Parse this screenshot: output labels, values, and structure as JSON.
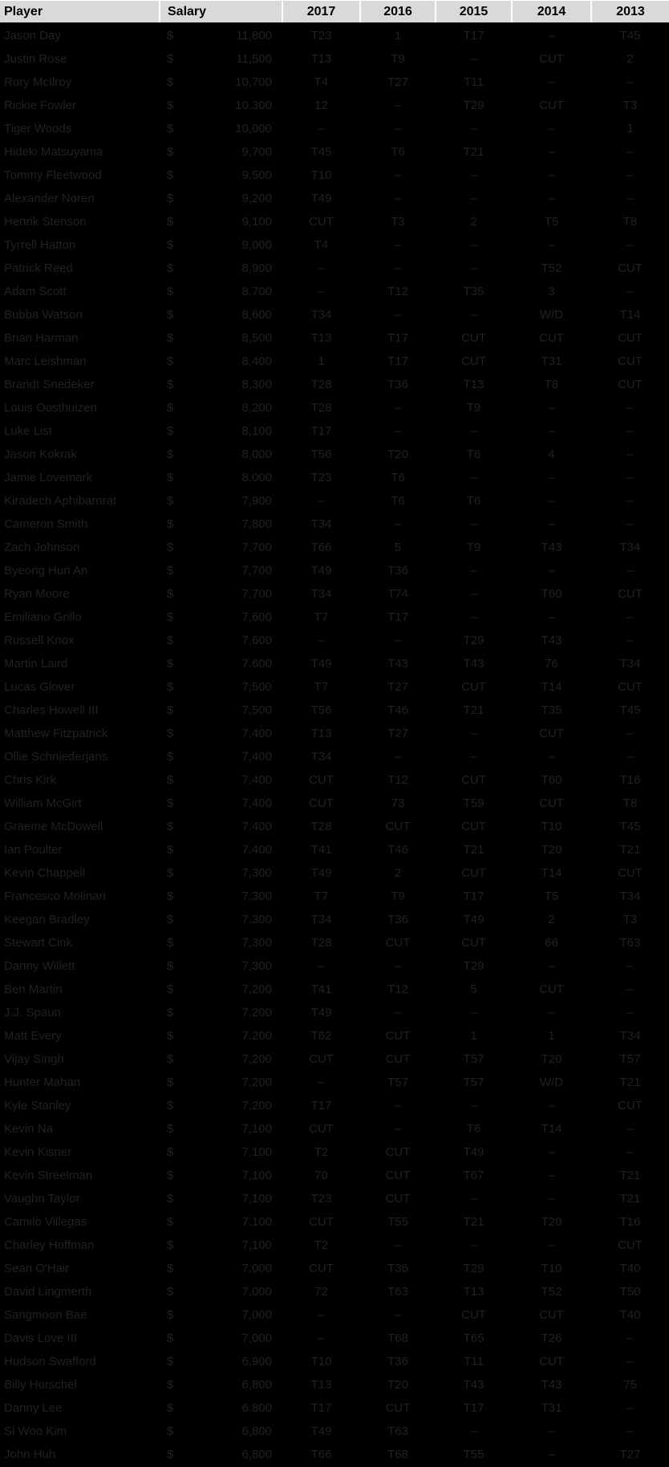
{
  "table": {
    "columns": [
      "Player",
      "Salary",
      "2017",
      "2016",
      "2015",
      "2014",
      "2013"
    ],
    "currency_symbol": "$",
    "rows": [
      {
        "player": "Jason Day",
        "salary": "11,800",
        "results": [
          "T23",
          "1",
          "T17",
          "–",
          "T45"
        ]
      },
      {
        "player": "Justin Rose",
        "salary": "11,500",
        "results": [
          "T13",
          "T9",
          "–",
          "CUT",
          "2"
        ]
      },
      {
        "player": "Rory McIlroy",
        "salary": "10,700",
        "results": [
          "T4",
          "T27",
          "T11",
          "–",
          "–"
        ]
      },
      {
        "player": "Rickie Fowler",
        "salary": "10,300",
        "results": [
          "12",
          "–",
          "T29",
          "CUT",
          "T3"
        ]
      },
      {
        "player": "Tiger Woods",
        "salary": "10,000",
        "results": [
          "–",
          "–",
          "–",
          "–",
          "1"
        ]
      },
      {
        "player": "Hideki Matsuyama",
        "salary": "9,700",
        "results": [
          "T45",
          "T6",
          "T21",
          "–",
          "–"
        ]
      },
      {
        "player": "Tommy Fleetwood",
        "salary": "9,500",
        "results": [
          "T10",
          "–",
          "–",
          "–",
          "–"
        ]
      },
      {
        "player": "Alexander Noren",
        "salary": "9,200",
        "results": [
          "T49",
          "–",
          "–",
          "–",
          "–"
        ]
      },
      {
        "player": "Henrik Stenson",
        "salary": "9,100",
        "results": [
          "CUT",
          "T3",
          "2",
          "T5",
          "T8"
        ]
      },
      {
        "player": "Tyrrell Hatton",
        "salary": "9,000",
        "results": [
          "T4",
          "–",
          "–",
          "–",
          "–"
        ]
      },
      {
        "player": "Patrick Reed",
        "salary": "8,900",
        "results": [
          "–",
          "–",
          "–",
          "T52",
          "CUT"
        ]
      },
      {
        "player": "Adam Scott",
        "salary": "8,700",
        "results": [
          "–",
          "T12",
          "T35",
          "3",
          "–"
        ]
      },
      {
        "player": "Bubba Watson",
        "salary": "8,600",
        "results": [
          "T34",
          "–",
          "–",
          "W/D",
          "T14"
        ]
      },
      {
        "player": "Brian Harman",
        "salary": "8,500",
        "results": [
          "T13",
          "T17",
          "CUT",
          "CUT",
          "CUT"
        ]
      },
      {
        "player": "Marc Leishman",
        "salary": "8,400",
        "results": [
          "1",
          "T17",
          "CUT",
          "T31",
          "CUT"
        ]
      },
      {
        "player": "Brandt Snedeker",
        "salary": "8,300",
        "results": [
          "T28",
          "T36",
          "T13",
          "T8",
          "CUT"
        ]
      },
      {
        "player": "Louis Oosthuizen",
        "salary": "8,200",
        "results": [
          "T28",
          "–",
          "T9",
          "–",
          "–"
        ]
      },
      {
        "player": "Luke List",
        "salary": "8,100",
        "results": [
          "T17",
          "–",
          "–",
          "–",
          "–"
        ]
      },
      {
        "player": "Jason Kokrak",
        "salary": "8,000",
        "results": [
          "T56",
          "T20",
          "T6",
          "4",
          "–"
        ]
      },
      {
        "player": "Jamie Lovemark",
        "salary": "8,000",
        "results": [
          "T23",
          "T6",
          "–",
          "–",
          "–"
        ]
      },
      {
        "player": "Kiradech Aphibarnrat",
        "salary": "7,900",
        "results": [
          "–",
          "T6",
          "T6",
          "–",
          "–"
        ]
      },
      {
        "player": "Cameron Smith",
        "salary": "7,800",
        "results": [
          "T34",
          "–",
          "–",
          "–",
          "–"
        ]
      },
      {
        "player": "Zach Johnson",
        "salary": "7,700",
        "results": [
          "T66",
          "5",
          "T9",
          "T43",
          "T34"
        ]
      },
      {
        "player": "Byeong Hun An",
        "salary": "7,700",
        "results": [
          "T49",
          "T36",
          "–",
          "–",
          "–"
        ]
      },
      {
        "player": "Ryan Moore",
        "salary": "7,700",
        "results": [
          "T34",
          "T74",
          "–",
          "T60",
          "CUT"
        ]
      },
      {
        "player": "Emiliano Grillo",
        "salary": "7,600",
        "results": [
          "T7",
          "T17",
          "–",
          "–",
          "–"
        ]
      },
      {
        "player": "Russell Knox",
        "salary": "7,600",
        "results": [
          "–",
          "–",
          "T29",
          "T43",
          "–"
        ]
      },
      {
        "player": "Martin Laird",
        "salary": "7,600",
        "results": [
          "T49",
          "T43",
          "T43",
          "76",
          "T34"
        ]
      },
      {
        "player": "Lucas Glover",
        "salary": "7,500",
        "results": [
          "T7",
          "T27",
          "CUT",
          "T14",
          "CUT"
        ]
      },
      {
        "player": "Charles Howell III",
        "salary": "7,500",
        "results": [
          "T56",
          "T46",
          "T21",
          "T35",
          "T45"
        ]
      },
      {
        "player": "Matthew Fitzpatrick",
        "salary": "7,400",
        "results": [
          "T13",
          "T27",
          "–",
          "CUT",
          "–"
        ]
      },
      {
        "player": "Ollie Schniederjans",
        "salary": "7,400",
        "results": [
          "T34",
          "–",
          "–",
          "–",
          "–"
        ]
      },
      {
        "player": "Chris Kirk",
        "salary": "7,400",
        "results": [
          "CUT",
          "T12",
          "CUT",
          "T60",
          "T16"
        ]
      },
      {
        "player": "William McGirt",
        "salary": "7,400",
        "results": [
          "CUT",
          "73",
          "T59",
          "CUT",
          "T8"
        ]
      },
      {
        "player": "Graeme McDowell",
        "salary": "7,400",
        "results": [
          "T28",
          "CUT",
          "CUT",
          "T10",
          "T45"
        ]
      },
      {
        "player": "Ian Poulter",
        "salary": "7,400",
        "results": [
          "T41",
          "T46",
          "T21",
          "T20",
          "T21"
        ]
      },
      {
        "player": "Kevin Chappell",
        "salary": "7,300",
        "results": [
          "T49",
          "2",
          "CUT",
          "T14",
          "CUT"
        ]
      },
      {
        "player": "Francesco Molinari",
        "salary": "7,300",
        "results": [
          "T7",
          "T9",
          "T17",
          "T5",
          "T34"
        ]
      },
      {
        "player": "Keegan Bradley",
        "salary": "7,300",
        "results": [
          "T34",
          "T36",
          "T49",
          "2",
          "T3"
        ]
      },
      {
        "player": "Stewart Cink",
        "salary": "7,300",
        "results": [
          "T28",
          "CUT",
          "CUT",
          "66",
          "T63"
        ]
      },
      {
        "player": "Danny Willett",
        "salary": "7,300",
        "results": [
          "–",
          "–",
          "T29",
          "–",
          "–"
        ]
      },
      {
        "player": "Ben Martin",
        "salary": "7,200",
        "results": [
          "T41",
          "T12",
          "5",
          "CUT",
          "–"
        ]
      },
      {
        "player": "J.J. Spaun",
        "salary": "7,200",
        "results": [
          "T49",
          "–",
          "–",
          "–",
          "–"
        ]
      },
      {
        "player": "Matt Every",
        "salary": "7,200",
        "results": [
          "T62",
          "CUT",
          "1",
          "1",
          "T34"
        ]
      },
      {
        "player": "Vijay Singh",
        "salary": "7,200",
        "results": [
          "CUT",
          "CUT",
          "T57",
          "T20",
          "T57"
        ]
      },
      {
        "player": "Hunter Mahan",
        "salary": "7,200",
        "results": [
          "–",
          "T57",
          "T57",
          "W/D",
          "T21"
        ]
      },
      {
        "player": "Kyle Stanley",
        "salary": "7,200",
        "results": [
          "T17",
          "–",
          "–",
          "–",
          "CUT"
        ]
      },
      {
        "player": "Kevin Na",
        "salary": "7,100",
        "results": [
          "CUT",
          "–",
          "T6",
          "T14",
          "–"
        ]
      },
      {
        "player": "Kevin Kisner",
        "salary": "7,100",
        "results": [
          "T2",
          "CUT",
          "T49",
          "–",
          "–"
        ]
      },
      {
        "player": "Kevin Streelman",
        "salary": "7,100",
        "results": [
          "70",
          "CUT",
          "T67",
          "–",
          "T21"
        ]
      },
      {
        "player": "Vaughn Taylor",
        "salary": "7,100",
        "results": [
          "T23",
          "CUT",
          "–",
          "–",
          "T21"
        ]
      },
      {
        "player": "Camilo Villegas",
        "salary": "7,100",
        "results": [
          "CUT",
          "T55",
          "T21",
          "T20",
          "T16"
        ]
      },
      {
        "player": "Charley Hoffman",
        "salary": "7,100",
        "results": [
          "T2",
          "–",
          "–",
          "–",
          "CUT"
        ]
      },
      {
        "player": "Sean O'Hair",
        "salary": "7,000",
        "results": [
          "CUT",
          "T36",
          "T29",
          "T10",
          "T40"
        ]
      },
      {
        "player": "David Lingmerth",
        "salary": "7,000",
        "results": [
          "72",
          "T63",
          "T13",
          "T52",
          "T50"
        ]
      },
      {
        "player": "Sangmoon Bae",
        "salary": "7,000",
        "results": [
          "–",
          "–",
          "CUT",
          "CUT",
          "T40"
        ]
      },
      {
        "player": "Davis Love III",
        "salary": "7,000",
        "results": [
          "–",
          "T68",
          "T65",
          "T26",
          "–"
        ]
      },
      {
        "player": "Hudson Swafford",
        "salary": "6,900",
        "results": [
          "T10",
          "T36",
          "T11",
          "CUT",
          "–"
        ]
      },
      {
        "player": "Billy Horschel",
        "salary": "6,800",
        "results": [
          "T13",
          "T20",
          "T43",
          "T43",
          "75"
        ]
      },
      {
        "player": "Danny Lee",
        "salary": "6,800",
        "results": [
          "T17",
          "CUT",
          "T17",
          "T31",
          "–"
        ]
      },
      {
        "player": "Si Woo Kim",
        "salary": "6,800",
        "results": [
          "T49",
          "T63",
          "–",
          "–",
          "–"
        ]
      },
      {
        "player": "John Huh",
        "salary": "6,800",
        "results": [
          "T66",
          "T68",
          "T55",
          "–",
          "T27"
        ]
      }
    ]
  },
  "colors": {
    "header_bg": "#D9D9D9",
    "header_text": "#000000",
    "body_bg": "#000000",
    "body_text": "#212121",
    "grid_separator": "#FFFFFF"
  }
}
